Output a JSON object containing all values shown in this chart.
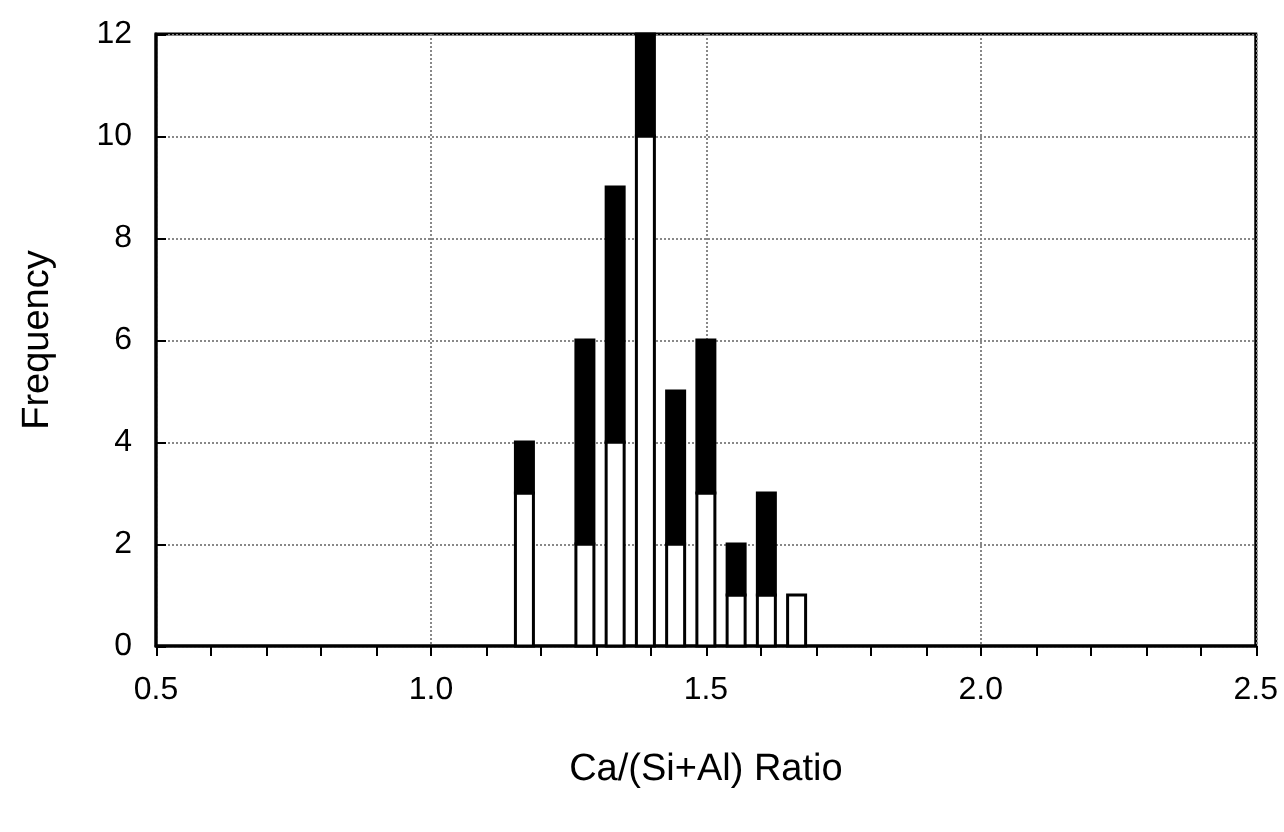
{
  "chart_data": {
    "type": "bar",
    "stacked": true,
    "xlabel": "Ca/(Si+Al) Ratio",
    "ylabel": "Frequency",
    "x": [
      1.17,
      1.28,
      1.335,
      1.39,
      1.445,
      1.5,
      1.555,
      1.61,
      1.665
    ],
    "series": [
      {
        "color": "#ffffff",
        "values": [
          3,
          2,
          4,
          10,
          2,
          3,
          1,
          1,
          1
        ]
      },
      {
        "color": "#000000",
        "values": [
          1,
          4,
          5,
          2,
          3,
          3,
          1,
          2,
          0
        ]
      }
    ],
    "xlim": [
      0.5,
      2.5
    ],
    "xticks": [
      {
        "value": 0.5,
        "label": "0.5"
      },
      {
        "value": 0.6,
        "label": null
      },
      {
        "value": 0.7,
        "label": null
      },
      {
        "value": 0.8,
        "label": null
      },
      {
        "value": 0.9,
        "label": null
      },
      {
        "value": 1,
        "label": "1.0"
      },
      {
        "value": 1.1,
        "label": null
      },
      {
        "value": 1.2,
        "label": null
      },
      {
        "value": 1.3,
        "label": null
      },
      {
        "value": 1.4,
        "label": null
      },
      {
        "value": 1.5,
        "label": "1.5"
      },
      {
        "value": 1.6,
        "label": null
      },
      {
        "value": 1.7,
        "label": null
      },
      {
        "value": 1.8,
        "label": null
      },
      {
        "value": 1.9,
        "label": null
      },
      {
        "value": 2,
        "label": "2.0"
      },
      {
        "value": 2.1,
        "label": null
      },
      {
        "value": 2.2,
        "label": null
      },
      {
        "value": 2.3,
        "label": null
      },
      {
        "value": 2.4,
        "label": null
      },
      {
        "value": 2.5,
        "label": "2.5"
      }
    ],
    "ylim": [
      0,
      12
    ],
    "yticks": [
      0,
      2,
      4,
      6,
      8,
      10,
      12
    ],
    "grid": true
  }
}
